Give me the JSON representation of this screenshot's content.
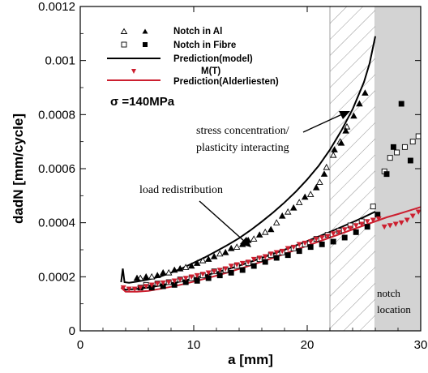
{
  "chart_data": {
    "type": "scatter",
    "xlabel": "a [mm]",
    "ylabel": "dadN [mm/cycle]",
    "xlim": [
      0,
      30
    ],
    "ylim": [
      0,
      0.0012
    ],
    "x_ticks": [
      0,
      10,
      20,
      30
    ],
    "x_tick_labels": [
      "0",
      "10",
      "20",
      "30"
    ],
    "y_ticks": [
      0,
      0.0002,
      0.0004,
      0.0006,
      0.0008,
      0.001,
      0.0012
    ],
    "y_tick_labels": [
      "0",
      "0.0002",
      "0.0004",
      "0.0006",
      "0.0008",
      "0.001",
      "0.0012"
    ],
    "grid": false,
    "legend_position": "top-left",
    "legend": [
      {
        "label": "Notch in Al",
        "style": "triangles-open-filled"
      },
      {
        "label": "Notch in Fibre",
        "style": "squares-open-filled"
      },
      {
        "label": "Prediction(model)",
        "style": "black-line"
      },
      {
        "label": "M(T)",
        "style": "red-down-triangle"
      },
      {
        "label": "Prediction(Alderliesten)",
        "style": "red-line"
      }
    ],
    "annotation_sigma": "σ =140MPa",
    "annotations": [
      {
        "text_lines": [
          "stress concentration/",
          "plasticity interacting"
        ]
      },
      {
        "text_lines": [
          "load redistribution"
        ]
      }
    ],
    "region_labels": [
      "notch",
      "location"
    ],
    "regions": {
      "hatched_x": [
        22,
        26
      ],
      "shaded_x": [
        26,
        30
      ]
    },
    "colors": {
      "black": "#000000",
      "red": "#cc1f2f",
      "shade": "#d3d3d3"
    },
    "series": [
      {
        "name": "Notch in Al",
        "marker": "triangle-open",
        "color": "#000000",
        "points": [
          [
            5.3,
            0.000195
          ],
          [
            6.3,
            0.0002
          ],
          [
            7.8,
            0.000215
          ],
          [
            9.3,
            0.000235
          ],
          [
            10.8,
            0.00026
          ],
          [
            12.3,
            0.000285
          ],
          [
            13.8,
            0.00031
          ],
          [
            15.3,
            0.00034
          ],
          [
            16.3,
            0.000365
          ],
          [
            17.3,
            0.0004
          ],
          [
            18.3,
            0.00044
          ],
          [
            19.3,
            0.000475
          ],
          [
            20.3,
            0.000505
          ],
          [
            21.1,
            0.00055
          ],
          [
            21.7,
            0.000605
          ],
          [
            22.3,
            0.00065
          ],
          [
            22.9,
            0.0007
          ],
          [
            23.5,
            0.000755
          ]
        ]
      },
      {
        "name": "Notch in Al",
        "marker": "triangle-filled",
        "color": "#000000",
        "points": [
          [
            5,
            0.000195
          ],
          [
            5.8,
            0.0002
          ],
          [
            6.8,
            0.000205
          ],
          [
            7.3,
            0.000215
          ],
          [
            8.3,
            0.000225
          ],
          [
            8.8,
            0.00023
          ],
          [
            9.8,
            0.00024
          ],
          [
            10.3,
            0.00025
          ],
          [
            11.3,
            0.000265
          ],
          [
            11.8,
            0.000275
          ],
          [
            12.8,
            0.00029
          ],
          [
            13.3,
            0.000305
          ],
          [
            14.3,
            0.00032
          ],
          [
            14.8,
            0.000335
          ],
          [
            15.8,
            0.000355
          ],
          [
            16.8,
            0.000375
          ],
          [
            17.8,
            0.000425
          ],
          [
            18.8,
            0.000455
          ],
          [
            19.8,
            0.000495
          ],
          [
            20.8,
            0.00053
          ],
          [
            21.5,
            0.00058
          ],
          [
            22.4,
            0.00067
          ],
          [
            23,
            0.000695
          ],
          [
            23.4,
            0.00074
          ],
          [
            24.1,
            0.000795
          ],
          [
            24.6,
            0.00084
          ],
          [
            25.1,
            0.00088
          ]
        ]
      },
      {
        "name": "Notch in Fibre",
        "marker": "square-open",
        "color": "#000000",
        "points": [
          [
            5.8,
            0.00017
          ],
          [
            6.8,
            0.000175
          ],
          [
            7.8,
            0.00018
          ],
          [
            8.8,
            0.00019
          ],
          [
            9.8,
            0.000195
          ],
          [
            10.8,
            0.000205
          ],
          [
            11.8,
            0.00022
          ],
          [
            12.8,
            0.000225
          ],
          [
            13.8,
            0.00024
          ],
          [
            14.8,
            0.00025
          ],
          [
            15.8,
            0.000265
          ],
          [
            16.8,
            0.00028
          ],
          [
            17.8,
            0.00029
          ],
          [
            18.8,
            0.000305
          ],
          [
            19.8,
            0.00032
          ],
          [
            20.8,
            0.00034
          ],
          [
            21.8,
            0.000355
          ],
          [
            22.8,
            0.00037
          ],
          [
            23.8,
            0.00039
          ],
          [
            24.8,
            0.000405
          ],
          [
            25.8,
            0.00046
          ],
          [
            26.8,
            0.00059
          ],
          [
            27.3,
            0.00064
          ],
          [
            27.9,
            0.00066
          ],
          [
            28.6,
            0.00068
          ],
          [
            29.3,
            0.0007
          ],
          [
            29.8,
            0.00072
          ]
        ]
      },
      {
        "name": "Notch in Fibre",
        "marker": "square-filled",
        "color": "#000000",
        "points": [
          [
            5.3,
            0.00016
          ],
          [
            6.3,
            0.00016
          ],
          [
            7.3,
            0.000165
          ],
          [
            8.3,
            0.00017
          ],
          [
            9.3,
            0.00018
          ],
          [
            10.3,
            0.000185
          ],
          [
            11.3,
            0.000195
          ],
          [
            12.3,
            0.000205
          ],
          [
            13.3,
            0.000215
          ],
          [
            14.3,
            0.000225
          ],
          [
            15.3,
            0.00024
          ],
          [
            16.3,
            0.000255
          ],
          [
            17.3,
            0.00027
          ],
          [
            18.3,
            0.00028
          ],
          [
            19.3,
            0.000295
          ],
          [
            20.3,
            0.00031
          ],
          [
            21.3,
            0.00032
          ],
          [
            22.3,
            0.00033
          ],
          [
            23.3,
            0.000345
          ],
          [
            24.3,
            0.000365
          ],
          [
            25.3,
            0.000385
          ],
          [
            26.2,
            0.00043
          ],
          [
            27,
            0.00058
          ],
          [
            27.6,
            0.00068
          ],
          [
            28.3,
            0.00084
          ],
          [
            29.1,
            0.00063
          ]
        ]
      },
      {
        "name": "M(T)",
        "marker": "triangle-down-filled",
        "color": "#cc1f2f",
        "points": [
          [
            3.8,
            0.00016
          ],
          [
            4.3,
            0.000155
          ],
          [
            4.8,
            0.000155
          ],
          [
            5.3,
            0.00016
          ],
          [
            5.8,
            0.000165
          ],
          [
            6.3,
            0.00017
          ],
          [
            6.8,
            0.000175
          ],
          [
            7.3,
            0.000178
          ],
          [
            7.8,
            0.00018
          ],
          [
            8.3,
            0.000185
          ],
          [
            8.8,
            0.00019
          ],
          [
            9.3,
            0.000195
          ],
          [
            9.8,
            0.0002
          ],
          [
            10.3,
            0.000205
          ],
          [
            10.8,
            0.00021
          ],
          [
            11.3,
            0.000215
          ],
          [
            11.8,
            0.00022
          ],
          [
            12.3,
            0.000225
          ],
          [
            12.8,
            0.00023
          ],
          [
            13.3,
            0.00024
          ],
          [
            13.8,
            0.000245
          ],
          [
            14.3,
            0.00025
          ],
          [
            14.8,
            0.000255
          ],
          [
            15.3,
            0.000265
          ],
          [
            15.8,
            0.00027
          ],
          [
            16.3,
            0.000275
          ],
          [
            16.8,
            0.000285
          ],
          [
            17.3,
            0.00029
          ],
          [
            17.8,
            0.000295
          ],
          [
            18.3,
            0.000305
          ],
          [
            18.8,
            0.00031
          ],
          [
            19.3,
            0.00032
          ],
          [
            19.8,
            0.000325
          ],
          [
            20.3,
            0.00033
          ],
          [
            20.8,
            0.00034
          ],
          [
            21.3,
            0.000345
          ],
          [
            21.8,
            0.00035
          ],
          [
            22.3,
            0.00036
          ],
          [
            22.8,
            0.000365
          ],
          [
            23.3,
            0.000375
          ],
          [
            23.8,
            0.00038
          ],
          [
            24.3,
            0.00039
          ],
          [
            24.8,
            0.000395
          ],
          [
            25.3,
            0.000405
          ],
          [
            25.8,
            0.00041
          ],
          [
            26.3,
            0.000415
          ],
          [
            26.8,
            0.000385
          ],
          [
            27.3,
            0.00039
          ],
          [
            27.8,
            0.000395
          ],
          [
            28.3,
            0.0004
          ],
          [
            28.8,
            0.00041
          ],
          [
            29.3,
            0.000425
          ],
          [
            29.8,
            0.00044
          ]
        ]
      },
      {
        "name": "Prediction(model)",
        "marker": "line",
        "color": "#000000",
        "points": [
          [
            3.6,
            0.00018
          ],
          [
            3.75,
            0.00023
          ],
          [
            3.9,
            0.00018
          ],
          [
            4.3,
            0.000178
          ],
          [
            5,
            0.000182
          ],
          [
            6,
            0.00019
          ],
          [
            7,
            0.0002
          ],
          [
            8,
            0.000215
          ],
          [
            9,
            0.000232
          ],
          [
            10,
            0.000252
          ],
          [
            11,
            0.000272
          ],
          [
            12,
            0.000295
          ],
          [
            13,
            0.000318
          ],
          [
            14,
            0.000343
          ],
          [
            15,
            0.000372
          ],
          [
            16,
            0.000404
          ],
          [
            17,
            0.000438
          ],
          [
            18,
            0.000475
          ],
          [
            19,
            0.000515
          ],
          [
            20,
            0.00056
          ],
          [
            21,
            0.00061
          ],
          [
            22,
            0.00067
          ],
          [
            23,
            0.00074
          ],
          [
            24,
            0.00082
          ],
          [
            25,
            0.00092
          ],
          [
            25.5,
            0.00099
          ],
          [
            25.8,
            0.00105
          ],
          [
            26,
            0.00109
          ]
        ]
      },
      {
        "name": "Prediction(model)",
        "marker": "line",
        "color": "#000000",
        "points": [
          [
            3.6,
            0.00016
          ],
          [
            4,
            0.000152
          ],
          [
            5,
            0.000155
          ],
          [
            6,
            0.00016
          ],
          [
            7,
            0.000167
          ],
          [
            8,
            0.000175
          ],
          [
            9,
            0.000184
          ],
          [
            10,
            0.000194
          ],
          [
            11,
            0.000205
          ],
          [
            12,
            0.000216
          ],
          [
            13,
            0.000228
          ],
          [
            14,
            0.000241
          ],
          [
            15,
            0.000255
          ],
          [
            16,
            0.00027
          ],
          [
            17,
            0.000285
          ],
          [
            18,
            0.0003
          ],
          [
            19,
            0.000316
          ],
          [
            20,
            0.000332
          ],
          [
            21,
            0.000349
          ],
          [
            22,
            0.000366
          ],
          [
            23,
            0.000384
          ],
          [
            24,
            0.000402
          ],
          [
            25,
            0.000421
          ],
          [
            26,
            0.000441
          ]
        ]
      },
      {
        "name": "Prediction(Alderliesten)",
        "marker": "line",
        "color": "#cc1f2f",
        "points": [
          [
            3.6,
            0.00016
          ],
          [
            4,
            0.000145
          ],
          [
            5,
            0.000145
          ],
          [
            6,
            0.000148
          ],
          [
            7,
            0.000155
          ],
          [
            8,
            0.000163
          ],
          [
            9,
            0.000172
          ],
          [
            10,
            0.000182
          ],
          [
            11,
            0.000193
          ],
          [
            12,
            0.000204
          ],
          [
            13,
            0.000216
          ],
          [
            14,
            0.000229
          ],
          [
            15,
            0.000242
          ],
          [
            16,
            0.000256
          ],
          [
            17,
            0.00027
          ],
          [
            18,
            0.000285
          ],
          [
            19,
            0.0003
          ],
          [
            20,
            0.000315
          ],
          [
            21,
            0.00033
          ],
          [
            22,
            0.000345
          ],
          [
            23,
            0.00036
          ],
          [
            24,
            0.000375
          ],
          [
            25,
            0.00039
          ],
          [
            26,
            0.000405
          ],
          [
            27,
            0.00042
          ],
          [
            28,
            0.000432
          ],
          [
            29,
            0.000445
          ],
          [
            30,
            0.000458
          ]
        ]
      }
    ]
  }
}
